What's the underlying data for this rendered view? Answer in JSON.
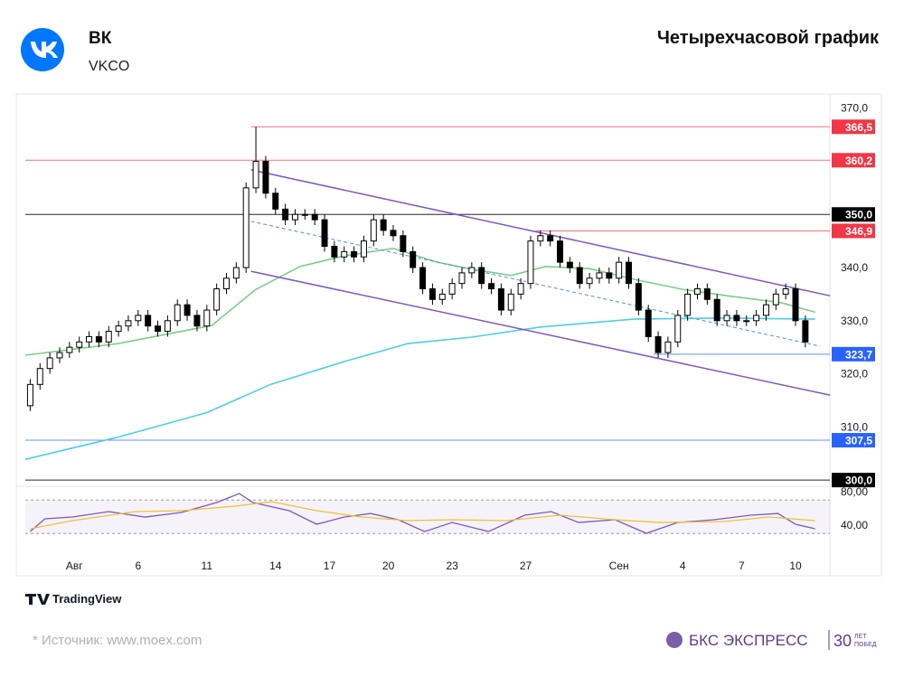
{
  "header": {
    "name": "ВК",
    "ticker": "VKCO"
  },
  "footer": {
    "brand": "TradingView",
    "source": "* Источник: www.moex.com",
    "company": "БКС ЭКСПРЕСС",
    "years": "30",
    "years_top": "ЛЕТ",
    "years_bottom": "ПОБЕД"
  },
  "chart_data": {
    "type": "candlestick",
    "title": "Четырехчасовой график",
    "xlim": [
      -0.5,
      81.5
    ],
    "xticks": [
      {
        "value": 4.5,
        "label": "Авг"
      },
      {
        "value": 11,
        "label": "6"
      },
      {
        "value": 18,
        "label": "11"
      },
      {
        "value": 25,
        "label": "14"
      },
      {
        "value": 30.5,
        "label": "17"
      },
      {
        "value": 36.5,
        "label": "20"
      },
      {
        "value": 43,
        "label": "23"
      },
      {
        "value": 50.5,
        "label": "27"
      },
      {
        "value": 60,
        "label": "Сен"
      },
      {
        "value": 66.5,
        "label": "4"
      },
      {
        "value": 72.5,
        "label": "7"
      },
      {
        "value": 78,
        "label": "10"
      }
    ],
    "ylim": [
      299,
      372.5
    ],
    "yticks": [
      {
        "value": 370,
        "label": "370,0"
      },
      {
        "value": 340,
        "label": "340,0"
      },
      {
        "value": 330,
        "label": "330,0"
      },
      {
        "value": 320,
        "label": "320,0"
      },
      {
        "value": 310,
        "label": "310,0"
      }
    ],
    "up_color": "#ffffff",
    "down_color": "#000000",
    "candles": {
      "open": [
        314,
        318,
        321,
        323,
        324,
        325,
        326,
        327,
        326,
        328,
        329,
        330,
        331,
        329,
        328,
        330,
        333,
        331,
        329,
        332,
        336,
        338,
        340,
        355,
        360,
        354,
        351,
        349,
        350,
        350,
        349,
        344,
        342,
        343,
        342,
        345,
        349,
        347,
        346,
        343,
        340,
        336,
        334,
        335,
        337,
        339,
        340,
        337,
        336,
        332,
        335,
        337,
        345,
        346,
        345,
        341,
        340,
        337,
        338,
        339,
        338,
        341,
        337,
        332,
        327,
        324,
        326,
        331,
        335,
        336,
        334,
        330,
        331,
        330,
        330,
        331,
        333,
        335,
        336,
        330
      ],
      "high": [
        319,
        322,
        324,
        325,
        326,
        327,
        328,
        328,
        329,
        330,
        331,
        332,
        332,
        330,
        331,
        334,
        334,
        332,
        333,
        337,
        339,
        341,
        356,
        366.5,
        361,
        355,
        352,
        351,
        351,
        351,
        350,
        345,
        344,
        344,
        346,
        350,
        350,
        348,
        347,
        344,
        341,
        337,
        336,
        338,
        340,
        341,
        341,
        338,
        337,
        336,
        338,
        346,
        347,
        347,
        346,
        342,
        341,
        339,
        340,
        340,
        342,
        342,
        338,
        333,
        328,
        327,
        332,
        336,
        337,
        337,
        335,
        332,
        332,
        331,
        332,
        334,
        336,
        337,
        337,
        331
      ],
      "low": [
        313,
        317,
        320,
        322,
        323,
        324,
        325,
        325,
        325,
        327,
        328,
        329,
        328,
        327,
        327,
        329,
        330,
        328,
        328,
        331,
        335,
        337,
        339,
        354,
        353,
        350,
        348,
        348,
        349,
        348,
        343,
        341,
        341,
        341,
        341,
        344,
        346,
        345,
        342,
        339,
        335,
        333,
        333,
        334,
        336,
        338,
        336,
        335,
        331,
        331,
        334,
        336,
        344,
        344,
        340,
        339,
        336,
        336,
        337,
        337,
        337,
        336,
        331,
        326,
        323,
        323,
        325,
        330,
        334,
        333,
        329,
        329,
        329,
        329,
        329,
        330,
        332,
        334,
        329,
        325
      ],
      "close": [
        318,
        321,
        323,
        324,
        325,
        326,
        327,
        326,
        328,
        329,
        330,
        331,
        329,
        328,
        330,
        333,
        331,
        329,
        332,
        336,
        338,
        340,
        355,
        360,
        354,
        351,
        349,
        350,
        350,
        349,
        344,
        342,
        343,
        342,
        345,
        349,
        347,
        346,
        343,
        340,
        336,
        334,
        335,
        337,
        339,
        340,
        337,
        336,
        332,
        335,
        337,
        345,
        346,
        345,
        341,
        340,
        337,
        338,
        339,
        338,
        341,
        337,
        332,
        327,
        324,
        326,
        331,
        335,
        336,
        334,
        330,
        331,
        330,
        330,
        331,
        333,
        335,
        336,
        330,
        326
      ]
    },
    "lines": [
      {
        "color": "#7ccd8a",
        "x": [
          -0.5,
          9,
          18.5,
          23,
          27.5,
          32,
          37,
          41.5,
          45,
          49,
          52.5,
          57,
          62,
          66.5,
          71,
          76.5,
          80
        ],
        "values": [
          323.5,
          325.7,
          329.1,
          335.9,
          340.2,
          342.2,
          343.6,
          341,
          339.7,
          338.5,
          340.2,
          339.8,
          337.6,
          335.9,
          334.7,
          333.4,
          331.6
        ]
      },
      {
        "color": "#4dd0e1",
        "x": [
          -0.5,
          9,
          18,
          24.5,
          32,
          38.5,
          45,
          52,
          61.5,
          70.5,
          80
        ],
        "values": [
          303.9,
          308.1,
          312.7,
          318,
          322.3,
          325.7,
          326.9,
          328.8,
          330.3,
          330.5,
          330.3
        ]
      }
    ],
    "trendlines": [
      {
        "color": "#7e57c2",
        "dash": false,
        "x": [
          22.5,
          81.5
        ],
        "values": [
          358.4,
          334.7
        ]
      },
      {
        "color": "#7e57c2",
        "dash": false,
        "x": [
          22.5,
          81.5
        ],
        "values": [
          339.3,
          316
        ]
      },
      {
        "color": "#5b8def",
        "dash": true,
        "x": [
          22.5,
          80.5
        ],
        "values": [
          348.7,
          325.2
        ]
      }
    ],
    "levels": [
      {
        "value": 366.5,
        "label": "366,5",
        "color": "#f23645",
        "x0": 22.5
      },
      {
        "value": 360.2,
        "label": "360,2",
        "color": "#f23645",
        "x0": -0.5
      },
      {
        "value": 350,
        "label": "350,0",
        "color": "#000000",
        "x0": -0.5
      },
      {
        "value": 346.9,
        "label": "346,9",
        "color": "#f23645",
        "x0": 51.5
      },
      {
        "value": 323.7,
        "label": "323,7",
        "color": "#2962ff",
        "x0": 63.5
      },
      {
        "value": 307.5,
        "label": "307,5",
        "color": "#2962ff",
        "x0": -0.5
      },
      {
        "value": 300,
        "label": "300,0",
        "color": "#000000",
        "x0": -0.5
      }
    ],
    "rsi": {
      "ylim": [
        19.5,
        84.3
      ],
      "yticks": [
        {
          "value": 80,
          "label": "80,00"
        },
        {
          "value": 40,
          "label": "40,00"
        }
      ],
      "band": [
        30,
        70
      ],
      "lines": [
        {
          "color": "#7e57c2",
          "x": [
            0,
            1.5,
            4.3,
            8,
            11.7,
            15.4,
            19,
            21.3,
            22.7,
            26.4,
            29.2,
            32,
            34.7,
            37.5,
            40.2,
            43,
            46.7,
            50.4,
            53.1,
            55.9,
            59.6,
            62.8,
            66,
            69.7,
            73.4,
            76.2,
            78,
            80
          ],
          "values": [
            32.4,
            47.6,
            49.7,
            56.2,
            49.7,
            55.1,
            67,
            77.8,
            67,
            57.3,
            41.1,
            49.7,
            54,
            46.5,
            32.4,
            43.2,
            32.4,
            51.9,
            56.2,
            43.2,
            46.5,
            30.3,
            43.2,
            46.5,
            51.9,
            54,
            41.1,
            35.7
          ]
        },
        {
          "color": "#f2c12e",
          "x": [
            0,
            4.3,
            10.7,
            15.4,
            20.9,
            24.6,
            29.2,
            33.8,
            38.4,
            43,
            48.5,
            54,
            59.6,
            64.2,
            70.7,
            75.3,
            80
          ],
          "values": [
            35.7,
            45.4,
            56.2,
            57.3,
            62.7,
            68.1,
            57.3,
            49.7,
            45.4,
            46.5,
            45.4,
            51.9,
            46.5,
            43.2,
            44.3,
            49.7,
            45.4
          ]
        }
      ]
    }
  }
}
